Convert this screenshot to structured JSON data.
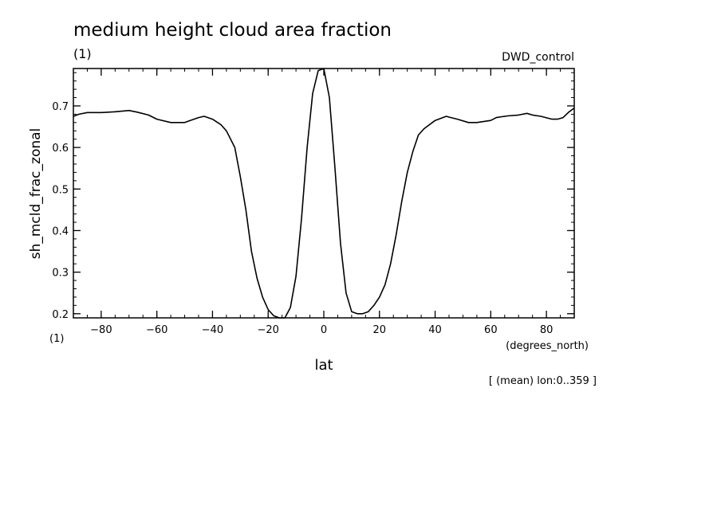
{
  "chart_data": {
    "type": "line",
    "title": "medium height cloud area fraction",
    "title_units": "(1)",
    "run_label": "DWD_control",
    "xlabel": "lat",
    "xunits": "(degrees_north)",
    "ylabel": "sh_mcld_frac_zonal",
    "yunits": "(1)",
    "note": "[ (mean) lon:0..359 ]",
    "xlim": [
      -90,
      90
    ],
    "ylim": [
      0.19,
      0.79
    ],
    "xticks": [
      -80,
      -60,
      -40,
      -20,
      0,
      20,
      40,
      60,
      80
    ],
    "xtick_labels": [
      "−80",
      "−60",
      "−40",
      "−20",
      "0",
      "20",
      "40",
      "60",
      "80"
    ],
    "yticks": [
      0.2,
      0.3,
      0.4,
      0.5,
      0.6,
      0.7
    ],
    "ytick_labels": [
      "0.2",
      "0.3",
      "0.4",
      "0.5",
      "0.6",
      "0.7"
    ],
    "grid": false,
    "line_color": "#000000",
    "series": [
      {
        "x": [
          -90,
          -88,
          -85,
          -80,
          -75,
          -70,
          -67,
          -63,
          -60,
          -55,
          -50,
          -48,
          -45,
          -43,
          -40,
          -37,
          -35,
          -32,
          -30,
          -28,
          -26,
          -24,
          -22,
          -20,
          -18,
          -16,
          -14,
          -12,
          -10,
          -8,
          -6,
          -4,
          -2,
          0,
          2,
          4,
          6,
          8,
          10,
          12,
          14,
          16,
          18,
          20,
          22,
          24,
          26,
          28,
          30,
          32,
          34,
          36,
          40,
          44,
          45,
          48,
          52,
          55,
          60,
          62,
          64,
          66,
          70,
          73,
          75,
          78,
          82,
          84,
          86,
          88,
          90
        ],
        "y": [
          0.675,
          0.68,
          0.684,
          0.684,
          0.686,
          0.689,
          0.685,
          0.678,
          0.668,
          0.66,
          0.66,
          0.665,
          0.672,
          0.675,
          0.668,
          0.655,
          0.64,
          0.6,
          0.53,
          0.45,
          0.35,
          0.285,
          0.24,
          0.21,
          0.195,
          0.19,
          0.19,
          0.215,
          0.29,
          0.43,
          0.6,
          0.73,
          0.785,
          0.79,
          0.72,
          0.55,
          0.37,
          0.25,
          0.205,
          0.2,
          0.2,
          0.205,
          0.22,
          0.24,
          0.27,
          0.32,
          0.39,
          0.47,
          0.54,
          0.59,
          0.63,
          0.645,
          0.665,
          0.675,
          0.673,
          0.668,
          0.66,
          0.66,
          0.665,
          0.672,
          0.674,
          0.676,
          0.678,
          0.682,
          0.678,
          0.675,
          0.668,
          0.668,
          0.672,
          0.685,
          0.695
        ]
      }
    ]
  }
}
